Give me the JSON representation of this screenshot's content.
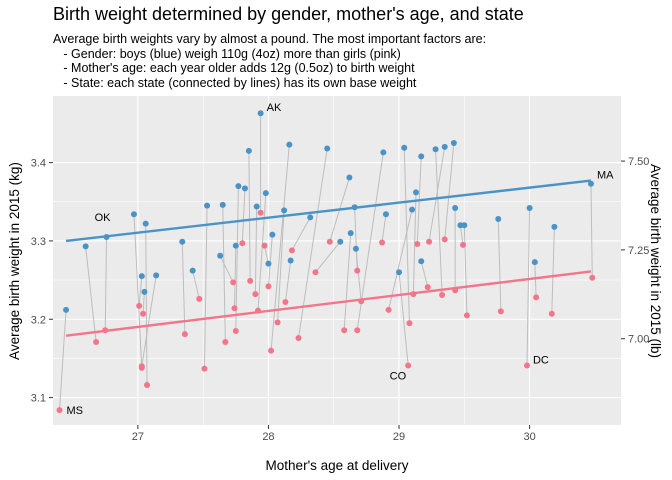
{
  "chart_data": {
    "type": "scatter",
    "title": "Birth weight determined by gender, mother's age, and state",
    "subtitle": [
      "Average birth weights vary by almost a pound. The most important factors are:",
      "   - Gender: boys (blue) weigh 110g (4oz) more than girls (pink)",
      "   - Mother's age: each year older adds 12g (0.5oz) to birth weight",
      "   - State: each state (connected by lines) has its own base weight"
    ],
    "xlabel": "Mother's age at delivery",
    "ylabel": "Average birth weight in 2015 (kg)",
    "ylabel_right": "Average birth weight in 2015 (lb)",
    "xlim": [
      26.35,
      30.7
    ],
    "ylim": [
      3.065,
      3.485
    ],
    "x_ticks": [
      27,
      28,
      29,
      30
    ],
    "x_tick_labels": [
      "27",
      "28",
      "29",
      "30"
    ],
    "y_ticks": [
      3.1,
      3.2,
      3.3,
      3.4
    ],
    "y_tick_labels": [
      "3.1",
      "3.2",
      "3.3",
      "3.4"
    ],
    "y2_ticks_lb": [
      7.0,
      7.25,
      7.5
    ],
    "y2_tick_labels": [
      "7.00",
      "7.25",
      "7.50"
    ],
    "grid": true,
    "colors": {
      "boys": "#4a93c6",
      "girls": "#f3758a",
      "connector": "#bdbdbd",
      "panel": "#ebebeb",
      "gridline": "#ffffff"
    },
    "fit_lines": [
      {
        "color": "boys",
        "x": [
          26.45,
          30.47
        ],
        "y": [
          3.3,
          3.377
        ]
      },
      {
        "color": "girls",
        "x": [
          26.45,
          30.47
        ],
        "y": [
          3.179,
          3.261
        ]
      }
    ],
    "pairs": [
      {
        "x_boy": 26.45,
        "y_boy": 3.212,
        "x_girl": 26.4,
        "y_girl": 3.084,
        "label": "MS"
      },
      {
        "x_boy": 26.6,
        "y_boy": 3.293,
        "x_girl": 26.68,
        "y_girl": 3.171
      },
      {
        "x_boy": 26.76,
        "y_boy": 3.305,
        "x_girl": 26.75,
        "y_girl": 3.186,
        "label": "OK"
      },
      {
        "x_boy": 26.97,
        "y_boy": 3.334,
        "x_girl": 27.03,
        "y_girl": 3.138
      },
      {
        "x_boy": 27.06,
        "y_boy": 3.322,
        "x_girl": 27.07,
        "y_girl": 3.116
      },
      {
        "x_boy": 27.03,
        "y_boy": 3.255,
        "x_girl": 27.01,
        "y_girl": 3.217
      },
      {
        "x_boy": 27.05,
        "y_boy": 3.235,
        "x_girl": 27.04,
        "y_girl": 3.207
      },
      {
        "x_boy": 27.14,
        "y_boy": 3.256,
        "x_girl": 27.03,
        "y_girl": 3.14
      },
      {
        "x_boy": 27.34,
        "y_boy": 3.299,
        "x_girl": 27.36,
        "y_girl": 3.181
      },
      {
        "x_boy": 27.42,
        "y_boy": 3.262,
        "x_girl": 27.47,
        "y_girl": 3.226
      },
      {
        "x_boy": 27.53,
        "y_boy": 3.345,
        "x_girl": 27.51,
        "y_girl": 3.137
      },
      {
        "x_boy": 27.65,
        "y_boy": 3.346,
        "x_girl": 27.67,
        "y_girl": 3.171
      },
      {
        "x_boy": 27.63,
        "y_boy": 3.281,
        "x_girl": 27.73,
        "y_girl": 3.247
      },
      {
        "x_boy": 27.75,
        "y_boy": 3.294,
        "x_girl": 27.74,
        "y_girl": 3.214
      },
      {
        "x_boy": 27.77,
        "y_boy": 3.37,
        "x_girl": 27.75,
        "y_girl": 3.185
      },
      {
        "x_boy": 27.82,
        "y_boy": 3.367,
        "x_girl": 27.8,
        "y_girl": 3.297
      },
      {
        "x_boy": 27.85,
        "y_boy": 3.415,
        "x_girl": 27.86,
        "y_girl": 3.249
      },
      {
        "x_boy": 27.91,
        "y_boy": 3.344,
        "x_girl": 27.9,
        "y_girl": 3.232
      },
      {
        "x_boy": 27.94,
        "y_boy": 3.463,
        "x_girl": 27.94,
        "y_girl": 3.336,
        "label": "AK"
      },
      {
        "x_boy": 27.98,
        "y_boy": 3.361,
        "x_girl": 27.92,
        "y_girl": 3.211
      },
      {
        "x_boy": 28.0,
        "y_boy": 3.271,
        "x_girl": 27.97,
        "y_girl": 3.294
      },
      {
        "x_boy": 28.03,
        "y_boy": 3.308,
        "x_girl": 28.0,
        "y_girl": 3.242
      },
      {
        "x_boy": 28.12,
        "y_boy": 3.339,
        "x_girl": 28.07,
        "y_girl": 3.196
      },
      {
        "x_boy": 28.16,
        "y_boy": 3.423,
        "x_girl": 28.02,
        "y_girl": 3.16
      },
      {
        "x_boy": 28.17,
        "y_boy": 3.275,
        "x_girl": 28.13,
        "y_girl": 3.222
      },
      {
        "x_boy": 28.32,
        "y_boy": 3.33,
        "x_girl": 28.18,
        "y_girl": 3.288
      },
      {
        "x_boy": 28.45,
        "y_boy": 3.418,
        "x_girl": 28.23,
        "y_girl": 3.176
      },
      {
        "x_boy": 28.55,
        "y_boy": 3.299,
        "x_girl": 28.36,
        "y_girl": 3.26
      },
      {
        "x_boy": 28.62,
        "y_boy": 3.381,
        "x_girl": 28.47,
        "y_girl": 3.299
      },
      {
        "x_boy": 28.66,
        "y_boy": 3.343,
        "x_girl": 28.68,
        "y_girl": 3.262
      },
      {
        "x_boy": 28.63,
        "y_boy": 3.31,
        "x_girl": 28.58,
        "y_girl": 3.186
      },
      {
        "x_boy": 28.67,
        "y_boy": 3.29,
        "x_girl": 28.71,
        "y_girl": 3.223
      },
      {
        "x_boy": 28.88,
        "y_boy": 3.413,
        "x_girl": 28.68,
        "y_girl": 3.186
      },
      {
        "x_boy": 28.9,
        "y_boy": 3.334,
        "x_girl": 28.87,
        "y_girl": 3.298
      },
      {
        "x_boy": 29.0,
        "y_boy": 3.26,
        "x_girl": 29.07,
        "y_girl": 3.141,
        "label": "CO"
      },
      {
        "x_boy": 29.04,
        "y_boy": 3.419,
        "x_girl": 29.08,
        "y_girl": 3.195
      },
      {
        "x_boy": 29.1,
        "y_boy": 3.34,
        "x_girl": 28.92,
        "y_girl": 3.212
      },
      {
        "x_boy": 29.13,
        "y_boy": 3.362,
        "x_girl": 29.11,
        "y_girl": 3.232
      },
      {
        "x_boy": 29.17,
        "y_boy": 3.408,
        "x_girl": 29.14,
        "y_girl": 3.296
      },
      {
        "x_boy": 29.17,
        "y_boy": 3.274,
        "x_girl": 29.22,
        "y_girl": 3.241
      },
      {
        "x_boy": 29.28,
        "y_boy": 3.417,
        "x_girl": 29.33,
        "y_girl": 3.231
      },
      {
        "x_boy": 29.35,
        "y_boy": 3.42,
        "x_girl": 29.23,
        "y_girl": 3.299
      },
      {
        "x_boy": 29.42,
        "y_boy": 3.425,
        "x_girl": 29.35,
        "y_girl": 3.302
      },
      {
        "x_boy": 29.43,
        "y_boy": 3.342,
        "x_girl": 29.43,
        "y_girl": 3.237
      },
      {
        "x_boy": 29.47,
        "y_boy": 3.32,
        "x_girl": 29.49,
        "y_girl": 3.295
      },
      {
        "x_boy": 29.5,
        "y_boy": 3.32,
        "x_girl": 29.52,
        "y_girl": 3.205
      },
      {
        "x_boy": 29.76,
        "y_boy": 3.328,
        "x_girl": 29.78,
        "y_girl": 3.21
      },
      {
        "x_boy": 30.0,
        "y_boy": 3.342,
        "x_girl": 29.98,
        "y_girl": 3.141,
        "label": "DC"
      },
      {
        "x_boy": 30.04,
        "y_boy": 3.273,
        "x_girl": 30.05,
        "y_girl": 3.228
      },
      {
        "x_boy": 30.19,
        "y_boy": 3.318,
        "x_girl": 30.17,
        "y_girl": 3.207
      },
      {
        "x_boy": 30.47,
        "y_boy": 3.373,
        "x_girl": 30.48,
        "y_girl": 3.253,
        "label": "MA"
      }
    ]
  }
}
